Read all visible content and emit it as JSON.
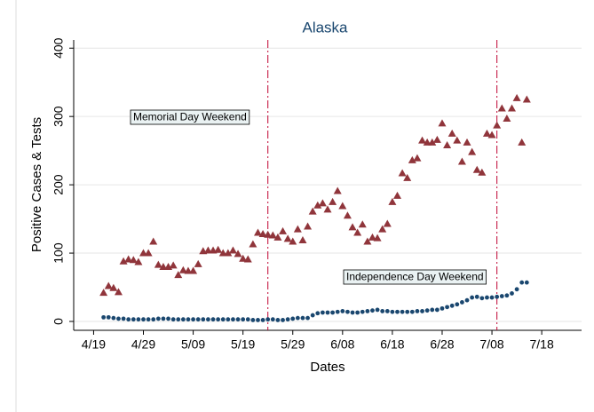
{
  "chart_data": {
    "type": "scatter",
    "title": "Alaska",
    "x_label": "Dates",
    "y_label": "Positive Cases & Tests",
    "x": [
      2,
      3,
      4,
      5,
      6,
      7,
      8,
      9,
      10,
      11,
      12,
      13,
      14,
      15,
      16,
      17,
      18,
      19,
      20,
      21,
      22,
      23,
      24,
      25,
      26,
      27,
      28,
      29,
      30,
      31,
      32,
      33,
      34,
      35,
      36,
      37,
      38,
      39,
      40,
      41,
      42,
      43,
      44,
      45,
      46,
      47,
      48,
      49,
      50,
      51,
      52,
      53,
      54,
      55,
      56,
      57,
      58,
      59,
      60,
      61,
      62,
      63,
      64,
      65,
      66,
      67,
      68,
      69,
      70,
      71,
      72,
      73,
      74,
      75,
      76,
      77,
      78,
      79,
      80,
      81,
      82,
      83,
      84,
      85,
      86,
      87
    ],
    "series": [
      {
        "marker": "triangle",
        "color": "#90353b",
        "values": [
          42,
          52,
          49,
          43,
          88,
          91,
          90,
          87,
          100,
          100,
          117,
          83,
          80,
          80,
          82,
          68,
          75,
          74,
          74,
          84,
          103,
          104,
          104,
          105,
          100,
          100,
          104,
          99,
          92,
          91,
          113,
          130,
          128,
          127,
          126,
          123,
          132,
          121,
          117,
          135,
          119,
          139,
          161,
          170,
          173,
          164,
          175,
          191,
          169,
          155,
          138,
          130,
          142,
          117,
          123,
          122,
          135,
          143,
          175,
          184,
          217,
          210,
          236,
          239,
          265,
          262,
          262,
          266,
          290,
          258,
          275,
          265,
          234,
          262,
          248,
          222,
          218,
          275,
          273,
          287,
          312,
          297,
          312,
          327,
          262,
          325
        ]
      },
      {
        "marker": "circle",
        "color": "#1a476f",
        "values": [
          6,
          6,
          5,
          4,
          4,
          3,
          3,
          3,
          3,
          3,
          3,
          4,
          4,
          4,
          3,
          3,
          3,
          3,
          3,
          3,
          3,
          3,
          3,
          3,
          3,
          3,
          3,
          3,
          3,
          3,
          2,
          2,
          2,
          3,
          3,
          2,
          2,
          3,
          4,
          5,
          5,
          5,
          9,
          12,
          13,
          13,
          13,
          14,
          15,
          14,
          13,
          13,
          14,
          15,
          16,
          17,
          15,
          15,
          14,
          14,
          14,
          14,
          14,
          15,
          15,
          16,
          17,
          17,
          19,
          21,
          23,
          25,
          28,
          31,
          35,
          36,
          34,
          35,
          35,
          36,
          37,
          38,
          41,
          47,
          57,
          57
        ]
      }
    ],
    "xlim": [
      -4,
      98
    ],
    "xticks": [
      {
        "value": 0,
        "label": "4/19"
      },
      {
        "value": 10,
        "label": "4/29"
      },
      {
        "value": 20,
        "label": "5/09"
      },
      {
        "value": 30,
        "label": "5/19"
      },
      {
        "value": 40,
        "label": "5/29"
      },
      {
        "value": 50,
        "label": "6/08"
      },
      {
        "value": 60,
        "label": "6/18"
      },
      {
        "value": 70,
        "label": "6/28"
      },
      {
        "value": 80,
        "label": "7/08"
      },
      {
        "value": 90,
        "label": "7/18"
      }
    ],
    "ylim": [
      -13,
      412
    ],
    "yticks": [
      0,
      100,
      200,
      300,
      400
    ],
    "grid": true,
    "vlines": [
      {
        "x": 35,
        "color": "#c10534",
        "label": "Memorial Day Weekend"
      },
      {
        "x": 81,
        "color": "#c10534",
        "label": "Independence Day Weekend"
      }
    ]
  }
}
